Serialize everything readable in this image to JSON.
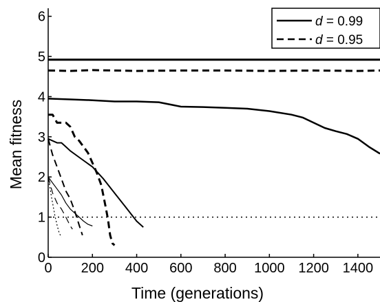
{
  "chart_data": {
    "type": "line",
    "title": "",
    "xlabel": "Time (generations)",
    "ylabel": "Mean fitness",
    "xlim": [
      0,
      1500
    ],
    "ylim": [
      0,
      6.2
    ],
    "x_ticks": [
      0,
      200,
      400,
      600,
      800,
      1000,
      1200,
      1400
    ],
    "y_ticks": [
      0,
      1,
      2,
      3,
      4,
      5,
      6
    ],
    "x_tick_labels": [
      "0",
      "200",
      "400",
      "600",
      "800",
      "1000",
      "1200",
      "1400"
    ],
    "y_tick_labels": [
      "0",
      "1",
      "2",
      "3",
      "4",
      "5",
      "6"
    ],
    "grid": false,
    "legend_position": "top-right",
    "legend": [
      {
        "var": "d",
        "text": " = 0.99",
        "style": "solid"
      },
      {
        "var": "d",
        "text": " = 0.95",
        "style": "dashed"
      }
    ],
    "reference_line": {
      "y": 1,
      "style": "dotted"
    },
    "series": [
      {
        "style": "solid",
        "width": 3,
        "x": [
          0,
          100,
          200,
          400,
          600,
          800,
          1000,
          1200,
          1400,
          1500
        ],
        "y": [
          4.92,
          4.92,
          4.92,
          4.92,
          4.92,
          4.92,
          4.92,
          4.92,
          4.92,
          4.92
        ]
      },
      {
        "style": "dashed",
        "width": 3,
        "x": [
          0,
          100,
          200,
          400,
          600,
          800,
          1000,
          1200,
          1400,
          1500
        ],
        "y": [
          4.65,
          4.64,
          4.66,
          4.64,
          4.65,
          4.65,
          4.64,
          4.65,
          4.64,
          4.65
        ]
      },
      {
        "style": "solid",
        "width": 2.5,
        "x": [
          0,
          100,
          200,
          300,
          400,
          500,
          600,
          700,
          800,
          900,
          1000,
          1100,
          1150,
          1200,
          1250,
          1300,
          1350,
          1400,
          1450,
          1500
        ],
        "y": [
          3.95,
          3.93,
          3.91,
          3.88,
          3.88,
          3.86,
          3.75,
          3.74,
          3.72,
          3.7,
          3.64,
          3.55,
          3.48,
          3.35,
          3.22,
          3.14,
          3.07,
          2.95,
          2.75,
          2.58
        ]
      },
      {
        "style": "dashed",
        "width": 3,
        "x": [
          0,
          20,
          40,
          60,
          80,
          100,
          120,
          140,
          160,
          180,
          200,
          220,
          240,
          260,
          270,
          280,
          290,
          300
        ],
        "y": [
          3.55,
          3.55,
          3.35,
          3.35,
          3.35,
          3.25,
          3.0,
          2.9,
          2.75,
          2.6,
          2.35,
          2.1,
          1.8,
          1.25,
          0.95,
          0.55,
          0.35,
          0.3
        ]
      },
      {
        "style": "solid",
        "width": 2,
        "x": [
          0,
          20,
          40,
          60,
          80,
          100,
          150,
          200,
          250,
          300,
          350,
          400,
          430
        ],
        "y": [
          2.95,
          2.9,
          2.85,
          2.85,
          2.75,
          2.65,
          2.45,
          2.25,
          1.95,
          1.6,
          1.25,
          0.9,
          0.75
        ]
      },
      {
        "style": "dashed",
        "width": 2,
        "x": [
          0,
          20,
          40,
          60,
          80,
          100,
          120,
          140,
          155
        ],
        "y": [
          2.95,
          2.55,
          2.25,
          1.95,
          1.65,
          1.45,
          1.15,
          0.8,
          0.55
        ]
      },
      {
        "style": "solid",
        "width": 1.2,
        "x": [
          0,
          20,
          40,
          60,
          80,
          100,
          120,
          140,
          160,
          180,
          200
        ],
        "y": [
          2.0,
          1.85,
          1.7,
          1.55,
          1.35,
          1.2,
          1.1,
          1.0,
          0.9,
          0.82,
          0.78
        ]
      },
      {
        "style": "dashed",
        "width": 1.2,
        "x": [
          0,
          20,
          40,
          60,
          80,
          100,
          110
        ],
        "y": [
          2.0,
          1.6,
          1.35,
          1.2,
          1.0,
          0.78,
          0.7
        ]
      },
      {
        "style": "dotted",
        "width": 1.2,
        "x": [
          0,
          15,
          30,
          40,
          50,
          60
        ],
        "y": [
          2.0,
          1.5,
          1.05,
          0.8,
          0.6,
          0.5
        ]
      }
    ]
  }
}
